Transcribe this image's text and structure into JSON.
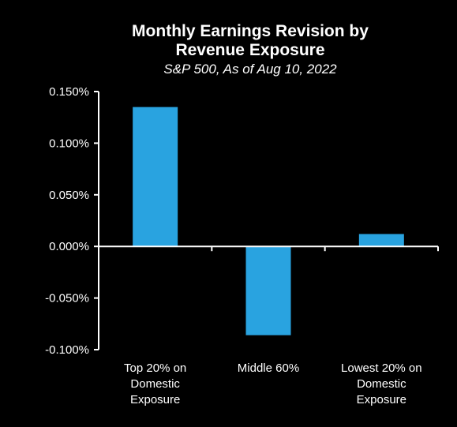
{
  "chart_data": {
    "type": "bar",
    "title": [
      "Monthly Earnings Revision by",
      "Revenue Exposure"
    ],
    "subtitle": "S&P 500, As of Aug 10, 2022",
    "categories": [
      [
        "Top 20% on",
        "Domestic",
        "Exposure"
      ],
      [
        "Middle 60%"
      ],
      [
        "Lowest 20% on",
        "Domestic",
        "Exposure"
      ]
    ],
    "values": [
      0.00135,
      -0.00086,
      0.00012
    ],
    "ylim": [
      -0.001,
      0.0015
    ],
    "yticks": [
      0.0015,
      0.001,
      0.0005,
      0,
      -0.0005,
      -0.001
    ],
    "ytick_labels": [
      "0.150%",
      "0.100%",
      "0.050%",
      "0.000%",
      "-0.050%",
      "-0.100%"
    ],
    "xlabel": "",
    "ylabel": "",
    "grid": false,
    "legend": "none",
    "colors": {
      "background": "#000000",
      "bar": "#29a3e0",
      "axis": "#ffffff",
      "text": "#ffffff"
    }
  }
}
